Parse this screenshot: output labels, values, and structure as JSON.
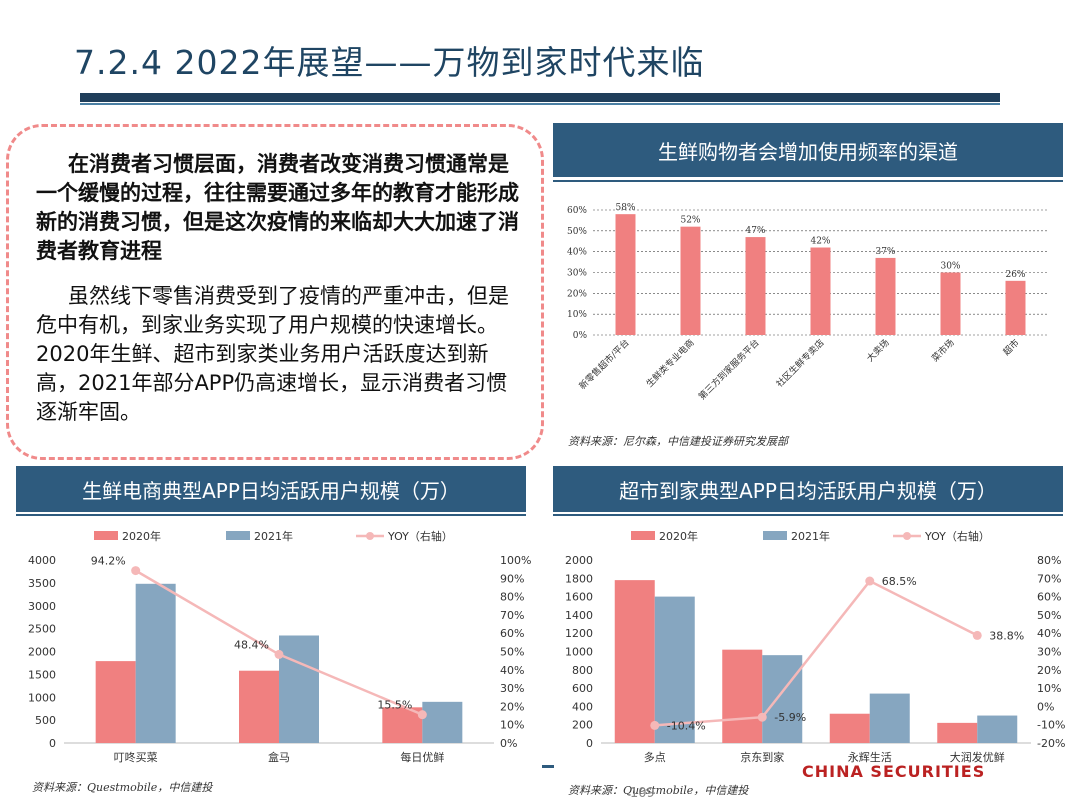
{
  "title": "7.2.4 2022年展望——万物到家时代来临",
  "textbox": {
    "heading": "在消费者习惯层面，消费者改变消费习惯通常是一个缓慢的过程，往往需要通过多年的教育才能形成新的消费习惯，但是这次疫情的来临却大大加速了消费者教育进程",
    "body": "虽然线下零售消费受到了疫情的严重冲击，但是危中有机，到家业务实现了用户规模的快速增长。2020年生鲜、超市到家类业务用户活跃度达到新高，2021年部分APP仍高速增长，显示消费者习惯逐渐牢固。"
  },
  "panel1": {
    "header": "生鲜购物者会增加使用频率的渠道",
    "source": "资料来源：尼尔森，中信建投证券研究发展部"
  },
  "panel2": {
    "header": "生鲜电商典型APP日均活跃用户规模（万）",
    "source": "资料来源：Questmobile，中信建投"
  },
  "panel3": {
    "header": "超市到家典型APP日均活跃用户规模（万）",
    "source": "资料来源：Questmobile，中信建投"
  },
  "footer": {
    "page_number": "109",
    "brand": "CHINA SECURITIES"
  },
  "colors": {
    "bar_2020": "#f08080",
    "bar_2021": "#86a6c0",
    "yoy_line": "#f5b8b8",
    "header_bg": "#2e5b7e"
  },
  "chart_data": [
    {
      "type": "bar",
      "categories": [
        "新零售超市/平台",
        "生鲜类专业电商",
        "第三方到家服务平台",
        "社区生鲜专卖店",
        "大卖场",
        "菜市场",
        "超市"
      ],
      "values": [
        58,
        52,
        47,
        42,
        37,
        30,
        26
      ],
      "value_labels": [
        "58%",
        "52%",
        "47%",
        "42%",
        "37%",
        "30%",
        "26%"
      ],
      "ylim": [
        0,
        60
      ],
      "yticks": [
        "0%",
        "10%",
        "20%",
        "30%",
        "40%",
        "50%",
        "60%"
      ],
      "grid": true
    },
    {
      "type": "bar",
      "categories": [
        "叮咚买菜",
        "盒马",
        "每日优鲜"
      ],
      "legend": [
        "2020年",
        "2021年",
        "YOY（右轴）"
      ],
      "series": [
        {
          "name": "2020年",
          "values": [
            1790,
            1580,
            780
          ]
        },
        {
          "name": "2021年",
          "values": [
            3480,
            2350,
            900
          ]
        }
      ],
      "yoy": {
        "name": "YOY（右轴）",
        "values": [
          94.2,
          48.4,
          15.5
        ],
        "labels": [
          "94.2%",
          "48.4%",
          "15.5%"
        ]
      },
      "ylim": [
        0,
        4000
      ],
      "yticks": [
        "0",
        "500",
        "1000",
        "1500",
        "2000",
        "2500",
        "3000",
        "3500",
        "4000"
      ],
      "y2lim": [
        0,
        100
      ],
      "y2ticks": [
        "0%",
        "10%",
        "20%",
        "30%",
        "40%",
        "50%",
        "60%",
        "70%",
        "80%",
        "90%",
        "100%"
      ]
    },
    {
      "type": "bar",
      "categories": [
        "多点",
        "京东到家",
        "永辉生活",
        "大润发优鲜"
      ],
      "legend": [
        "2020年",
        "2021年",
        "YOY（右轴）"
      ],
      "series": [
        {
          "name": "2020年",
          "values": [
            1780,
            1020,
            320,
            220
          ]
        },
        {
          "name": "2021年",
          "values": [
            1600,
            960,
            540,
            300
          ]
        }
      ],
      "yoy": {
        "name": "YOY（右轴）",
        "values": [
          -10.4,
          -5.9,
          68.5,
          38.8
        ],
        "labels": [
          "-10.4%",
          "-5.9%",
          "68.5%",
          "38.8%"
        ]
      },
      "ylim": [
        0,
        2000
      ],
      "yticks": [
        "0",
        "200",
        "400",
        "600",
        "800",
        "1000",
        "1200",
        "1400",
        "1600",
        "1800",
        "2000"
      ],
      "y2lim": [
        -20,
        80
      ],
      "y2ticks": [
        "-20%",
        "-10%",
        "0%",
        "10%",
        "20%",
        "30%",
        "40%",
        "50%",
        "60%",
        "70%",
        "80%"
      ]
    }
  ]
}
